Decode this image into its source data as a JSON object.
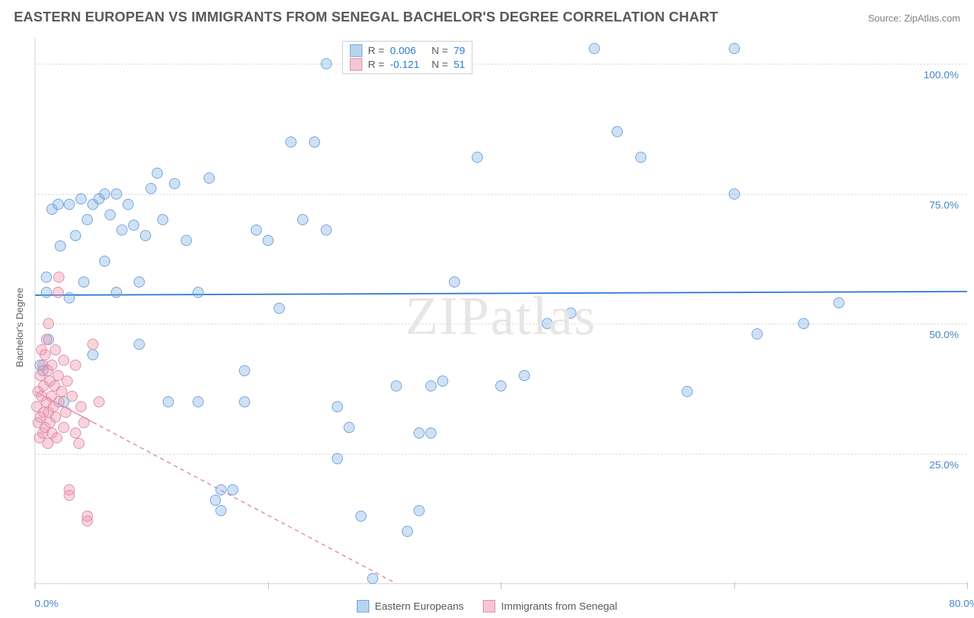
{
  "title": "EASTERN EUROPEAN VS IMMIGRANTS FROM SENEGAL BACHELOR'S DEGREE CORRELATION CHART",
  "source": "Source: ZipAtlas.com",
  "watermark": "ZIPatlas",
  "y_axis_label": "Bachelor's Degree",
  "chart": {
    "type": "scatter",
    "xlim": [
      0,
      80
    ],
    "ylim": [
      0,
      105
    ],
    "x_ticks": [
      0,
      20,
      40,
      60,
      80
    ],
    "x_tick_labels": [
      "0.0%",
      "",
      "",
      "",
      "80.0%"
    ],
    "y_ticks": [
      25,
      50,
      75,
      100
    ],
    "y_tick_labels": [
      "25.0%",
      "50.0%",
      "75.0%",
      "100.0%"
    ],
    "background_color": "#ffffff",
    "grid_color": "#d5d8db",
    "grid_style": "dashed",
    "marker_radius": 8,
    "marker_border_width": 1.5,
    "series": [
      {
        "key": "eastern_europeans",
        "label": "Eastern Europeans",
        "fill_color": "rgba(120,170,225,0.35)",
        "border_color": "#6aa3d8",
        "swatch_fill": "#b8d4ef",
        "swatch_border": "#6aa3d8",
        "r_value": "0.006",
        "n_value": "79",
        "trend": {
          "y_start": 55.5,
          "y_end": 56.2,
          "color": "#2d7cd6",
          "width": 2,
          "dash": "solid",
          "x_start": 0,
          "x_end": 80
        },
        "points": [
          [
            0.5,
            42
          ],
          [
            0.7,
            41
          ],
          [
            1,
            56
          ],
          [
            1,
            59
          ],
          [
            1.2,
            47
          ],
          [
            1.5,
            72
          ],
          [
            2,
            73
          ],
          [
            2.2,
            65
          ],
          [
            2.5,
            35
          ],
          [
            3,
            73
          ],
          [
            3,
            55
          ],
          [
            3.5,
            67
          ],
          [
            4,
            74
          ],
          [
            4.2,
            58
          ],
          [
            4.5,
            70
          ],
          [
            5,
            44
          ],
          [
            5,
            73
          ],
          [
            5.5,
            74
          ],
          [
            6,
            75
          ],
          [
            6,
            62
          ],
          [
            6.5,
            71
          ],
          [
            7,
            75
          ],
          [
            7,
            56
          ],
          [
            7.5,
            68
          ],
          [
            8,
            73
          ],
          [
            8.5,
            69
          ],
          [
            9,
            58
          ],
          [
            9,
            46
          ],
          [
            9.5,
            67
          ],
          [
            10,
            76
          ],
          [
            10.5,
            79
          ],
          [
            11,
            70
          ],
          [
            11.5,
            35
          ],
          [
            12,
            77
          ],
          [
            13,
            66
          ],
          [
            14,
            56
          ],
          [
            14,
            35
          ],
          [
            15,
            78
          ],
          [
            15.5,
            16
          ],
          [
            16,
            18
          ],
          [
            16,
            14
          ],
          [
            17,
            18
          ],
          [
            18,
            41
          ],
          [
            18,
            35
          ],
          [
            19,
            68
          ],
          [
            20,
            66
          ],
          [
            21,
            53
          ],
          [
            22,
            85
          ],
          [
            23,
            70
          ],
          [
            24,
            85
          ],
          [
            25,
            100
          ],
          [
            25,
            68
          ],
          [
            26,
            34
          ],
          [
            26,
            24
          ],
          [
            27,
            30
          ],
          [
            28,
            13
          ],
          [
            29,
            1
          ],
          [
            31,
            38
          ],
          [
            32,
            10
          ],
          [
            33,
            14
          ],
          [
            33,
            29
          ],
          [
            34,
            38
          ],
          [
            34,
            29
          ],
          [
            35,
            39
          ],
          [
            36,
            58
          ],
          [
            38,
            82
          ],
          [
            40,
            38
          ],
          [
            42,
            40
          ],
          [
            44,
            50
          ],
          [
            46,
            52
          ],
          [
            48,
            103
          ],
          [
            50,
            87
          ],
          [
            52,
            82
          ],
          [
            56,
            37
          ],
          [
            60,
            103
          ],
          [
            60,
            75
          ],
          [
            62,
            48
          ],
          [
            66,
            50
          ],
          [
            69,
            54
          ]
        ]
      },
      {
        "key": "senegal",
        "label": "Immigrants from Senegal",
        "fill_color": "rgba(235,150,175,0.40)",
        "border_color": "#e08aa5",
        "swatch_fill": "#f3c6d4",
        "swatch_border": "#e08aa5",
        "r_value": "-0.121",
        "n_value": "51",
        "trend": {
          "y_start": 37,
          "y_end": 0,
          "color": "#e08aa5",
          "width": 1.5,
          "dash": "6,5",
          "x_start": 0,
          "x_end": 31,
          "solid_until": 5
        },
        "points": [
          [
            0.2,
            34
          ],
          [
            0.3,
            37
          ],
          [
            0.3,
            31
          ],
          [
            0.4,
            28
          ],
          [
            0.5,
            40
          ],
          [
            0.5,
            32
          ],
          [
            0.6,
            45
          ],
          [
            0.6,
            36
          ],
          [
            0.7,
            29
          ],
          [
            0.7,
            42
          ],
          [
            0.8,
            33
          ],
          [
            0.8,
            38
          ],
          [
            0.9,
            44
          ],
          [
            0.9,
            30
          ],
          [
            1.0,
            47
          ],
          [
            1.0,
            35
          ],
          [
            1.1,
            41
          ],
          [
            1.1,
            27
          ],
          [
            1.2,
            50
          ],
          [
            1.2,
            33
          ],
          [
            1.3,
            39
          ],
          [
            1.3,
            31
          ],
          [
            1.4,
            36
          ],
          [
            1.5,
            42
          ],
          [
            1.5,
            29
          ],
          [
            1.6,
            34
          ],
          [
            1.7,
            38
          ],
          [
            1.8,
            45
          ],
          [
            1.8,
            32
          ],
          [
            1.9,
            28
          ],
          [
            2.0,
            40
          ],
          [
            2.0,
            56
          ],
          [
            2.1,
            59
          ],
          [
            2.1,
            35
          ],
          [
            2.3,
            37
          ],
          [
            2.5,
            43
          ],
          [
            2.5,
            30
          ],
          [
            2.7,
            33
          ],
          [
            2.8,
            39
          ],
          [
            3.0,
            18
          ],
          [
            3.0,
            17
          ],
          [
            3.2,
            36
          ],
          [
            3.5,
            42
          ],
          [
            3.5,
            29
          ],
          [
            3.8,
            27
          ],
          [
            4.0,
            34
          ],
          [
            4.2,
            31
          ],
          [
            4.5,
            12
          ],
          [
            4.5,
            13
          ],
          [
            5.0,
            46
          ],
          [
            5.5,
            35
          ]
        ]
      }
    ]
  },
  "legend_top": {
    "r_label": "R =",
    "n_label": "N ="
  }
}
